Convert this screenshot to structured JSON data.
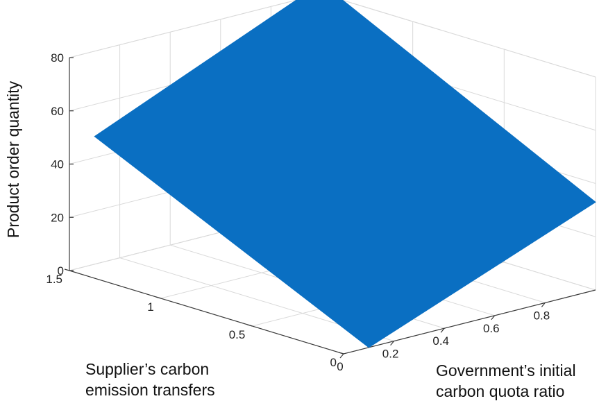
{
  "chart_data": {
    "type": "surface",
    "title": "",
    "x_axis": {
      "label_lines": [
        "Government’s initial",
        "carbon quota ratio"
      ],
      "ticks": [
        {
          "v": 0,
          "t": "0"
        },
        {
          "v": 0.2,
          "t": "0.2"
        },
        {
          "v": 0.4,
          "t": "0.4"
        },
        {
          "v": 0.6,
          "t": "0.6"
        },
        {
          "v": 0.8,
          "t": "0.8"
        }
      ],
      "range": [
        0,
        1
      ]
    },
    "y_axis": {
      "label_lines": [
        "Supplier’s carbon",
        "emission transfers"
      ],
      "ticks": [
        {
          "v": 0,
          "t": "0"
        },
        {
          "v": 0.5,
          "t": "0.5"
        },
        {
          "v": 1,
          "t": "1"
        },
        {
          "v": 1.5,
          "t": "1.5"
        }
      ],
      "range": [
        0,
        1.5
      ]
    },
    "z_axis": {
      "label": "Product order quantity",
      "ticks": [
        {
          "v": 0,
          "t": "0"
        },
        {
          "v": 20,
          "t": "20"
        },
        {
          "v": 40,
          "t": "40"
        },
        {
          "v": 60,
          "t": "60"
        },
        {
          "v": 80,
          "t": "80"
        }
      ],
      "range": [
        0,
        80
      ]
    },
    "surface": {
      "color": "#0a6fc2",
      "corners": [
        {
          "x": 0.1,
          "y": 0,
          "z": 0
        },
        {
          "x": 1.0,
          "y": 0,
          "z": 33
        },
        {
          "x": 1.0,
          "y": 1.5,
          "z": 84
        },
        {
          "x": 0.1,
          "y": 1.5,
          "z": 48
        }
      ]
    },
    "grid": true
  }
}
